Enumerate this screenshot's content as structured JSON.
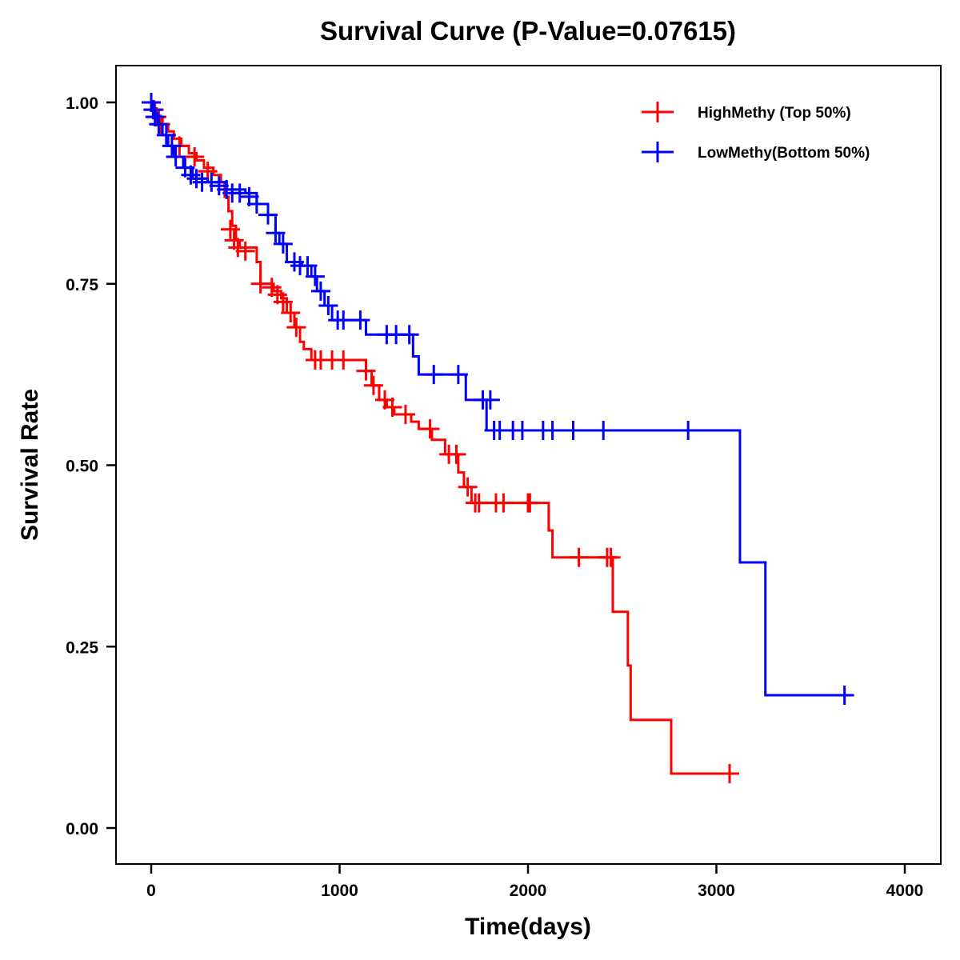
{
  "chart_data": {
    "type": "line",
    "subtype": "kaplan-meier-step",
    "title": "Survival Curve (P-Value=0.07615)",
    "xlabel": "Time(days)",
    "ylabel": "Survival Rate",
    "xlim": [
      -200,
      4200
    ],
    "ylim": [
      -0.05,
      1.05
    ],
    "xticks": [
      0,
      1000,
      2000,
      3000,
      4000
    ],
    "xtick_labels": [
      "0",
      "1000",
      "2000",
      "3000",
      "4000"
    ],
    "yticks": [
      0.0,
      0.25,
      0.5,
      0.75,
      1.0
    ],
    "ytick_labels": [
      "0.00",
      "0.25",
      "0.50",
      "0.75",
      "1.00"
    ],
    "grid": false,
    "legend_position": "top-right",
    "series": [
      {
        "name": "HighMethy (Top 50%)",
        "color": "#ff0000",
        "steps": [
          [
            0,
            1.0
          ],
          [
            20,
            0.99
          ],
          [
            40,
            0.98
          ],
          [
            60,
            0.97
          ],
          [
            90,
            0.96
          ],
          [
            120,
            0.95
          ],
          [
            160,
            0.94
          ],
          [
            200,
            0.93
          ],
          [
            240,
            0.92
          ],
          [
            280,
            0.91
          ],
          [
            330,
            0.9
          ],
          [
            370,
            0.89
          ],
          [
            390,
            0.87
          ],
          [
            410,
            0.85
          ],
          [
            430,
            0.83
          ],
          [
            450,
            0.81
          ],
          [
            470,
            0.8
          ],
          [
            560,
            0.78
          ],
          [
            580,
            0.75
          ],
          [
            650,
            0.74
          ],
          [
            690,
            0.73
          ],
          [
            720,
            0.71
          ],
          [
            760,
            0.69
          ],
          [
            790,
            0.67
          ],
          [
            810,
            0.66
          ],
          [
            850,
            0.645
          ],
          [
            1140,
            0.63
          ],
          [
            1170,
            0.61
          ],
          [
            1210,
            0.59
          ],
          [
            1250,
            0.58
          ],
          [
            1290,
            0.57
          ],
          [
            1380,
            0.56
          ],
          [
            1420,
            0.55
          ],
          [
            1490,
            0.535
          ],
          [
            1560,
            0.515
          ],
          [
            1630,
            0.49
          ],
          [
            1660,
            0.47
          ],
          [
            1700,
            0.448
          ],
          [
            2110,
            0.41
          ],
          [
            2130,
            0.373
          ],
          [
            2450,
            0.298
          ],
          [
            2530,
            0.224
          ],
          [
            2545,
            0.149
          ],
          [
            2760,
            0.075
          ]
        ],
        "end_time": 3070,
        "censored": [
          [
            0,
            1.0
          ],
          [
            15,
            0.99
          ],
          [
            30,
            0.98
          ],
          [
            50,
            0.97
          ],
          [
            150,
            0.94
          ],
          [
            230,
            0.925
          ],
          [
            300,
            0.905
          ],
          [
            420,
            0.825
          ],
          [
            440,
            0.81
          ],
          [
            460,
            0.8
          ],
          [
            500,
            0.795
          ],
          [
            580,
            0.75
          ],
          [
            640,
            0.745
          ],
          [
            670,
            0.735
          ],
          [
            700,
            0.725
          ],
          [
            740,
            0.71
          ],
          [
            770,
            0.69
          ],
          [
            870,
            0.645
          ],
          [
            900,
            0.645
          ],
          [
            960,
            0.645
          ],
          [
            1020,
            0.645
          ],
          [
            1140,
            0.63
          ],
          [
            1180,
            0.61
          ],
          [
            1240,
            0.59
          ],
          [
            1280,
            0.58
          ],
          [
            1350,
            0.57
          ],
          [
            1480,
            0.55
          ],
          [
            1580,
            0.515
          ],
          [
            1620,
            0.515
          ],
          [
            1680,
            0.47
          ],
          [
            1720,
            0.448
          ],
          [
            1740,
            0.448
          ],
          [
            1830,
            0.448
          ],
          [
            1870,
            0.448
          ],
          [
            2000,
            0.448
          ],
          [
            2010,
            0.448
          ],
          [
            2270,
            0.373
          ],
          [
            2420,
            0.373
          ],
          [
            2440,
            0.373
          ],
          [
            3070,
            0.075
          ]
        ]
      },
      {
        "name": "LowMethy(Bottom 50%)",
        "color": "#0000ff",
        "steps": [
          [
            0,
            1.0
          ],
          [
            15,
            0.985
          ],
          [
            35,
            0.97
          ],
          [
            60,
            0.955
          ],
          [
            90,
            0.94
          ],
          [
            120,
            0.925
          ],
          [
            170,
            0.91
          ],
          [
            220,
            0.895
          ],
          [
            300,
            0.89
          ],
          [
            400,
            0.88
          ],
          [
            500,
            0.875
          ],
          [
            560,
            0.86
          ],
          [
            620,
            0.845
          ],
          [
            660,
            0.82
          ],
          [
            680,
            0.805
          ],
          [
            720,
            0.78
          ],
          [
            800,
            0.775
          ],
          [
            850,
            0.76
          ],
          [
            880,
            0.74
          ],
          [
            920,
            0.72
          ],
          [
            960,
            0.7
          ],
          [
            1140,
            0.68
          ],
          [
            1390,
            0.65
          ],
          [
            1420,
            0.625
          ],
          [
            1670,
            0.59
          ],
          [
            1780,
            0.548
          ],
          [
            3125,
            0.366
          ],
          [
            3260,
            0.183
          ]
        ],
        "end_time": 3700,
        "censored": [
          [
            0,
            1.0
          ],
          [
            10,
            0.99
          ],
          [
            20,
            0.98
          ],
          [
            40,
            0.97
          ],
          [
            80,
            0.955
          ],
          [
            110,
            0.94
          ],
          [
            130,
            0.925
          ],
          [
            180,
            0.91
          ],
          [
            210,
            0.9
          ],
          [
            240,
            0.895
          ],
          [
            270,
            0.89
          ],
          [
            320,
            0.89
          ],
          [
            360,
            0.885
          ],
          [
            400,
            0.88
          ],
          [
            430,
            0.875
          ],
          [
            470,
            0.875
          ],
          [
            520,
            0.87
          ],
          [
            560,
            0.86
          ],
          [
            620,
            0.845
          ],
          [
            660,
            0.82
          ],
          [
            700,
            0.805
          ],
          [
            760,
            0.78
          ],
          [
            790,
            0.775
          ],
          [
            830,
            0.775
          ],
          [
            870,
            0.76
          ],
          [
            900,
            0.74
          ],
          [
            940,
            0.72
          ],
          [
            990,
            0.7
          ],
          [
            1020,
            0.7
          ],
          [
            1110,
            0.7
          ],
          [
            1250,
            0.68
          ],
          [
            1300,
            0.68
          ],
          [
            1370,
            0.68
          ],
          [
            1500,
            0.625
          ],
          [
            1630,
            0.625
          ],
          [
            1760,
            0.59
          ],
          [
            1800,
            0.59
          ],
          [
            1820,
            0.548
          ],
          [
            1850,
            0.548
          ],
          [
            1920,
            0.548
          ],
          [
            1970,
            0.548
          ],
          [
            2080,
            0.548
          ],
          [
            2130,
            0.548
          ],
          [
            2240,
            0.548
          ],
          [
            2400,
            0.548
          ],
          [
            2850,
            0.548
          ],
          [
            3680,
            0.183
          ]
        ]
      }
    ]
  }
}
